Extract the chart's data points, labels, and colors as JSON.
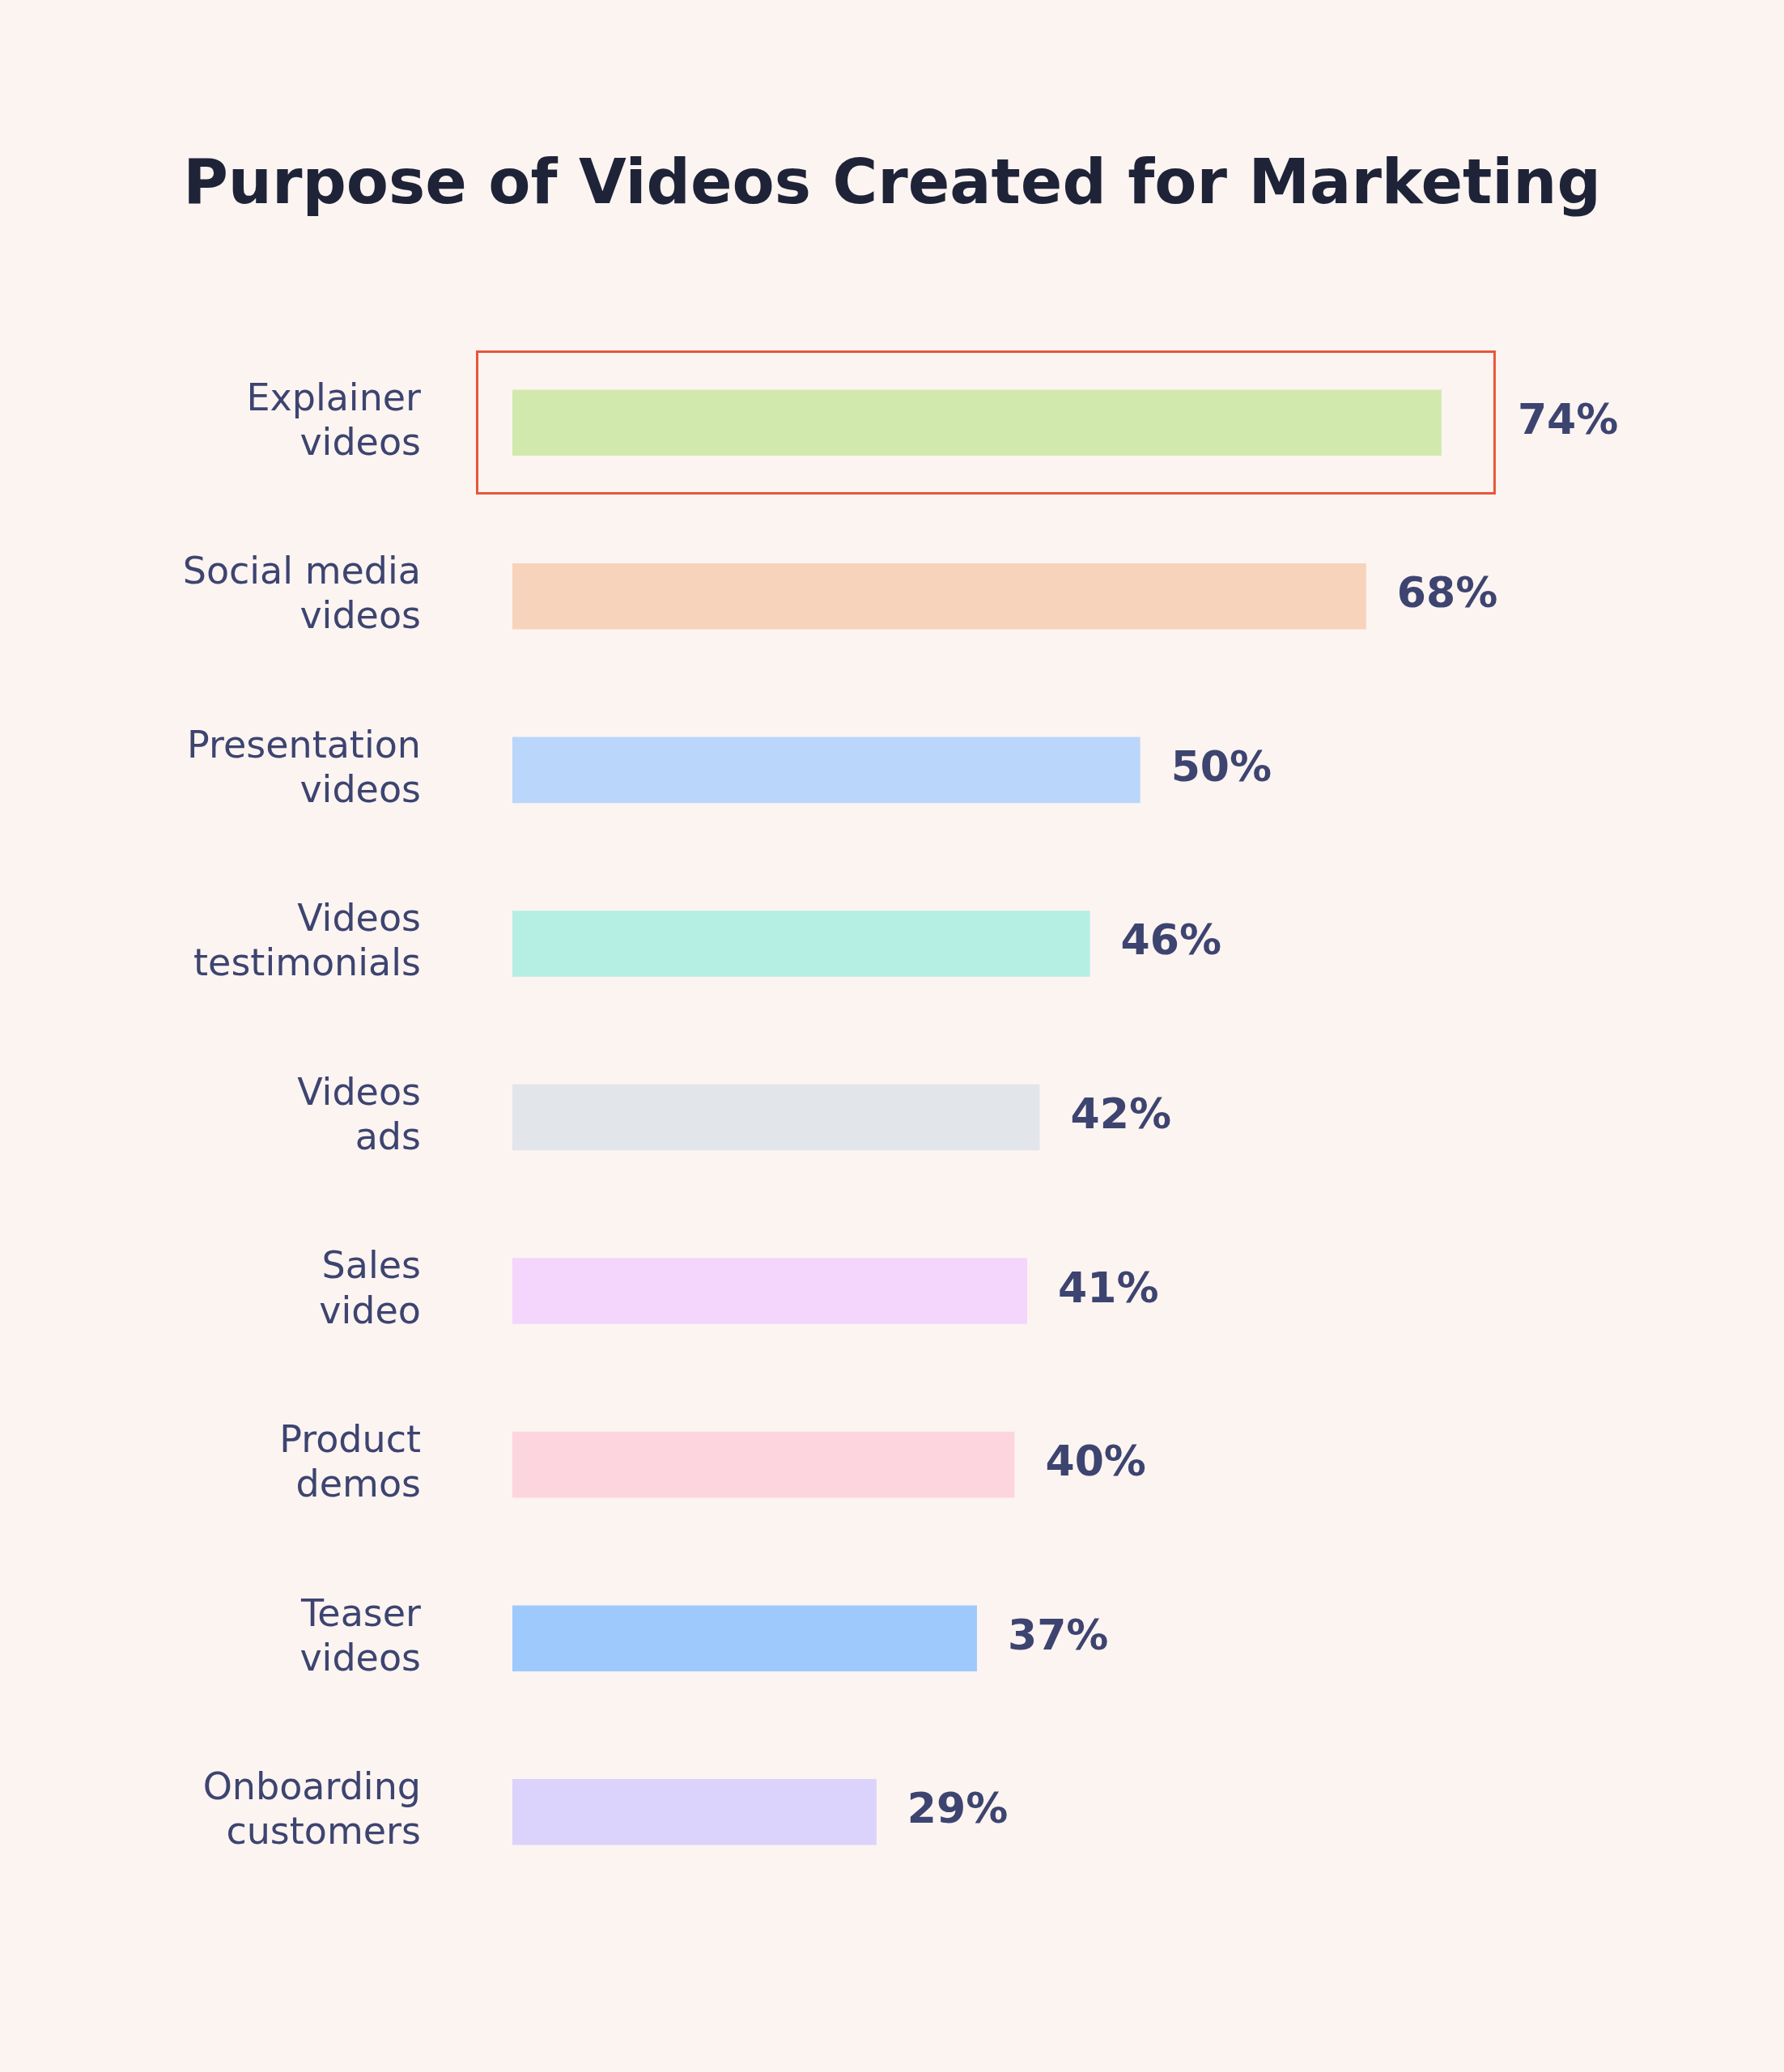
{
  "chart_data": {
    "type": "bar",
    "orientation": "horizontal",
    "title": "Purpose of Videos Created for Marketing",
    "categories": [
      "Explainer videos",
      "Social media videos",
      "Presentation videos",
      "Videos testimonials",
      "Videos ads",
      "Sales video",
      "Product demos",
      "Teaser videos",
      "Onboarding customers"
    ],
    "values": [
      74,
      68,
      50,
      46,
      42,
      41,
      40,
      37,
      29
    ],
    "colors": [
      "#d2e9ae",
      "#f7d3bb",
      "#bad6fb",
      "#b5efe4",
      "#e2e6ea",
      "#f4d5fb",
      "#fdd5df",
      "#9ec9fd",
      "#dbd3fb"
    ],
    "value_labels": [
      "74%",
      "68%",
      "50%",
      "46%",
      "42%",
      "41%",
      "40%",
      "37%",
      "29%"
    ],
    "tick_labels": "y",
    "grid": false,
    "legend": false
  }
}
